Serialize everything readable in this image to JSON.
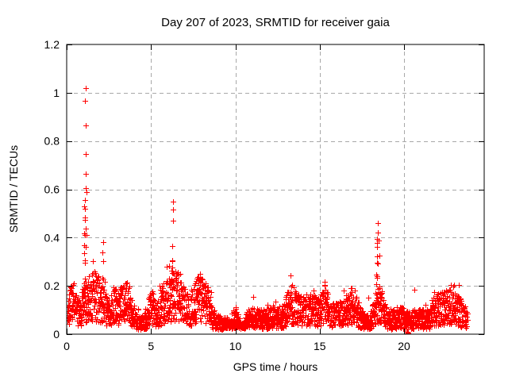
{
  "chart_data": {
    "type": "scatter",
    "title": "Day 207 of 2023, SRMTID for receiver gaia",
    "xlabel": "GPS time / hours",
    "ylabel": "SRMTID / TECUs",
    "xlim": [
      0,
      24.75
    ],
    "ylim": [
      0,
      1.2
    ],
    "xticks": {
      "values": [
        0,
        5,
        10,
        15,
        20
      ],
      "labels": [
        "0",
        "5",
        "10",
        "15",
        "20"
      ]
    },
    "yticks": {
      "values": [
        0,
        0.2,
        0.4,
        0.6,
        0.8,
        1.0,
        1.2
      ],
      "labels": [
        "0",
        "0.2",
        "0.4",
        "0.6",
        "0.8",
        "1",
        "1.2"
      ]
    },
    "grid": {
      "on": true,
      "color": "#a8a8a8",
      "dash": "5,4"
    },
    "frame_color": "#000000",
    "background": "#ffffff",
    "observed_peaks": [
      {
        "x": 1.1,
        "y": 1.02
      },
      {
        "x": 6.3,
        "y": 0.55
      },
      {
        "x": 18.5,
        "y": 0.46
      },
      {
        "x": 20.2,
        "y": 0.005
      }
    ],
    "series": [
      {
        "name": "SRMTID",
        "marker": "plus",
        "marker_size": 7,
        "color": "#ff0000",
        "generator": {
          "seed": 42,
          "n_points": 2600,
          "t_min": 0.03,
          "t_max": 23.75,
          "baseline": {
            "mean": 0.085,
            "wave_amp": 0.02,
            "spread_lo": 0.3,
            "spread_hi": 1.45,
            "min_y": 0.02,
            "tail_prob": 0.05,
            "tail_amp": 0.1
          },
          "regions": [
            {
              "from": 8.6,
              "to": 10.6,
              "factor": 0.6
            },
            {
              "from": 19.0,
              "to": 21.6,
              "factor": 0.8
            },
            {
              "from": 0.0,
              "to": 0.9,
              "factor": 0.9
            }
          ],
          "bumps": [
            {
              "x": 0.35,
              "amp": 0.06,
              "s": 0.15
            },
            {
              "x": 1.7,
              "amp": 0.1,
              "s": 0.4
            },
            {
              "x": 2.9,
              "amp": 0.06,
              "s": 0.2
            },
            {
              "x": 3.5,
              "amp": 0.07,
              "s": 0.25
            },
            {
              "x": 5.0,
              "amp": 0.06,
              "s": 0.15
            },
            {
              "x": 5.8,
              "amp": 0.06,
              "s": 0.3
            },
            {
              "x": 6.6,
              "amp": 0.09,
              "s": 0.3
            },
            {
              "x": 7.9,
              "amp": 0.08,
              "s": 0.3
            },
            {
              "x": 10.0,
              "amp": 0.07,
              "s": 0.12
            },
            {
              "x": 13.2,
              "amp": 0.05,
              "s": 0.3
            },
            {
              "x": 15.3,
              "amp": 0.07,
              "s": 0.15
            },
            {
              "x": 16.8,
              "amp": 0.05,
              "s": 0.3
            },
            {
              "x": 18.5,
              "amp": 0.08,
              "s": 0.25
            },
            {
              "x": 22.9,
              "amp": 0.05,
              "s": 0.3
            }
          ],
          "spikes": [
            {
              "x": 1.12,
              "peak": 1.02,
              "sigma": 0.07,
              "count": 30
            },
            {
              "x": 2.15,
              "peak": 0.38,
              "sigma": 0.05,
              "count": 9
            },
            {
              "x": 6.3,
              "peak": 0.55,
              "sigma": 0.06,
              "count": 14
            },
            {
              "x": 18.45,
              "peak": 0.46,
              "sigma": 0.09,
              "count": 18
            }
          ],
          "extra_points": [
            [
              20.18,
              0.003
            ],
            [
              20.22,
              0.006
            ],
            [
              20.2,
              0.01
            ],
            [
              20.24,
              0.002
            ],
            [
              20.2,
              0.0
            ]
          ]
        }
      }
    ]
  }
}
